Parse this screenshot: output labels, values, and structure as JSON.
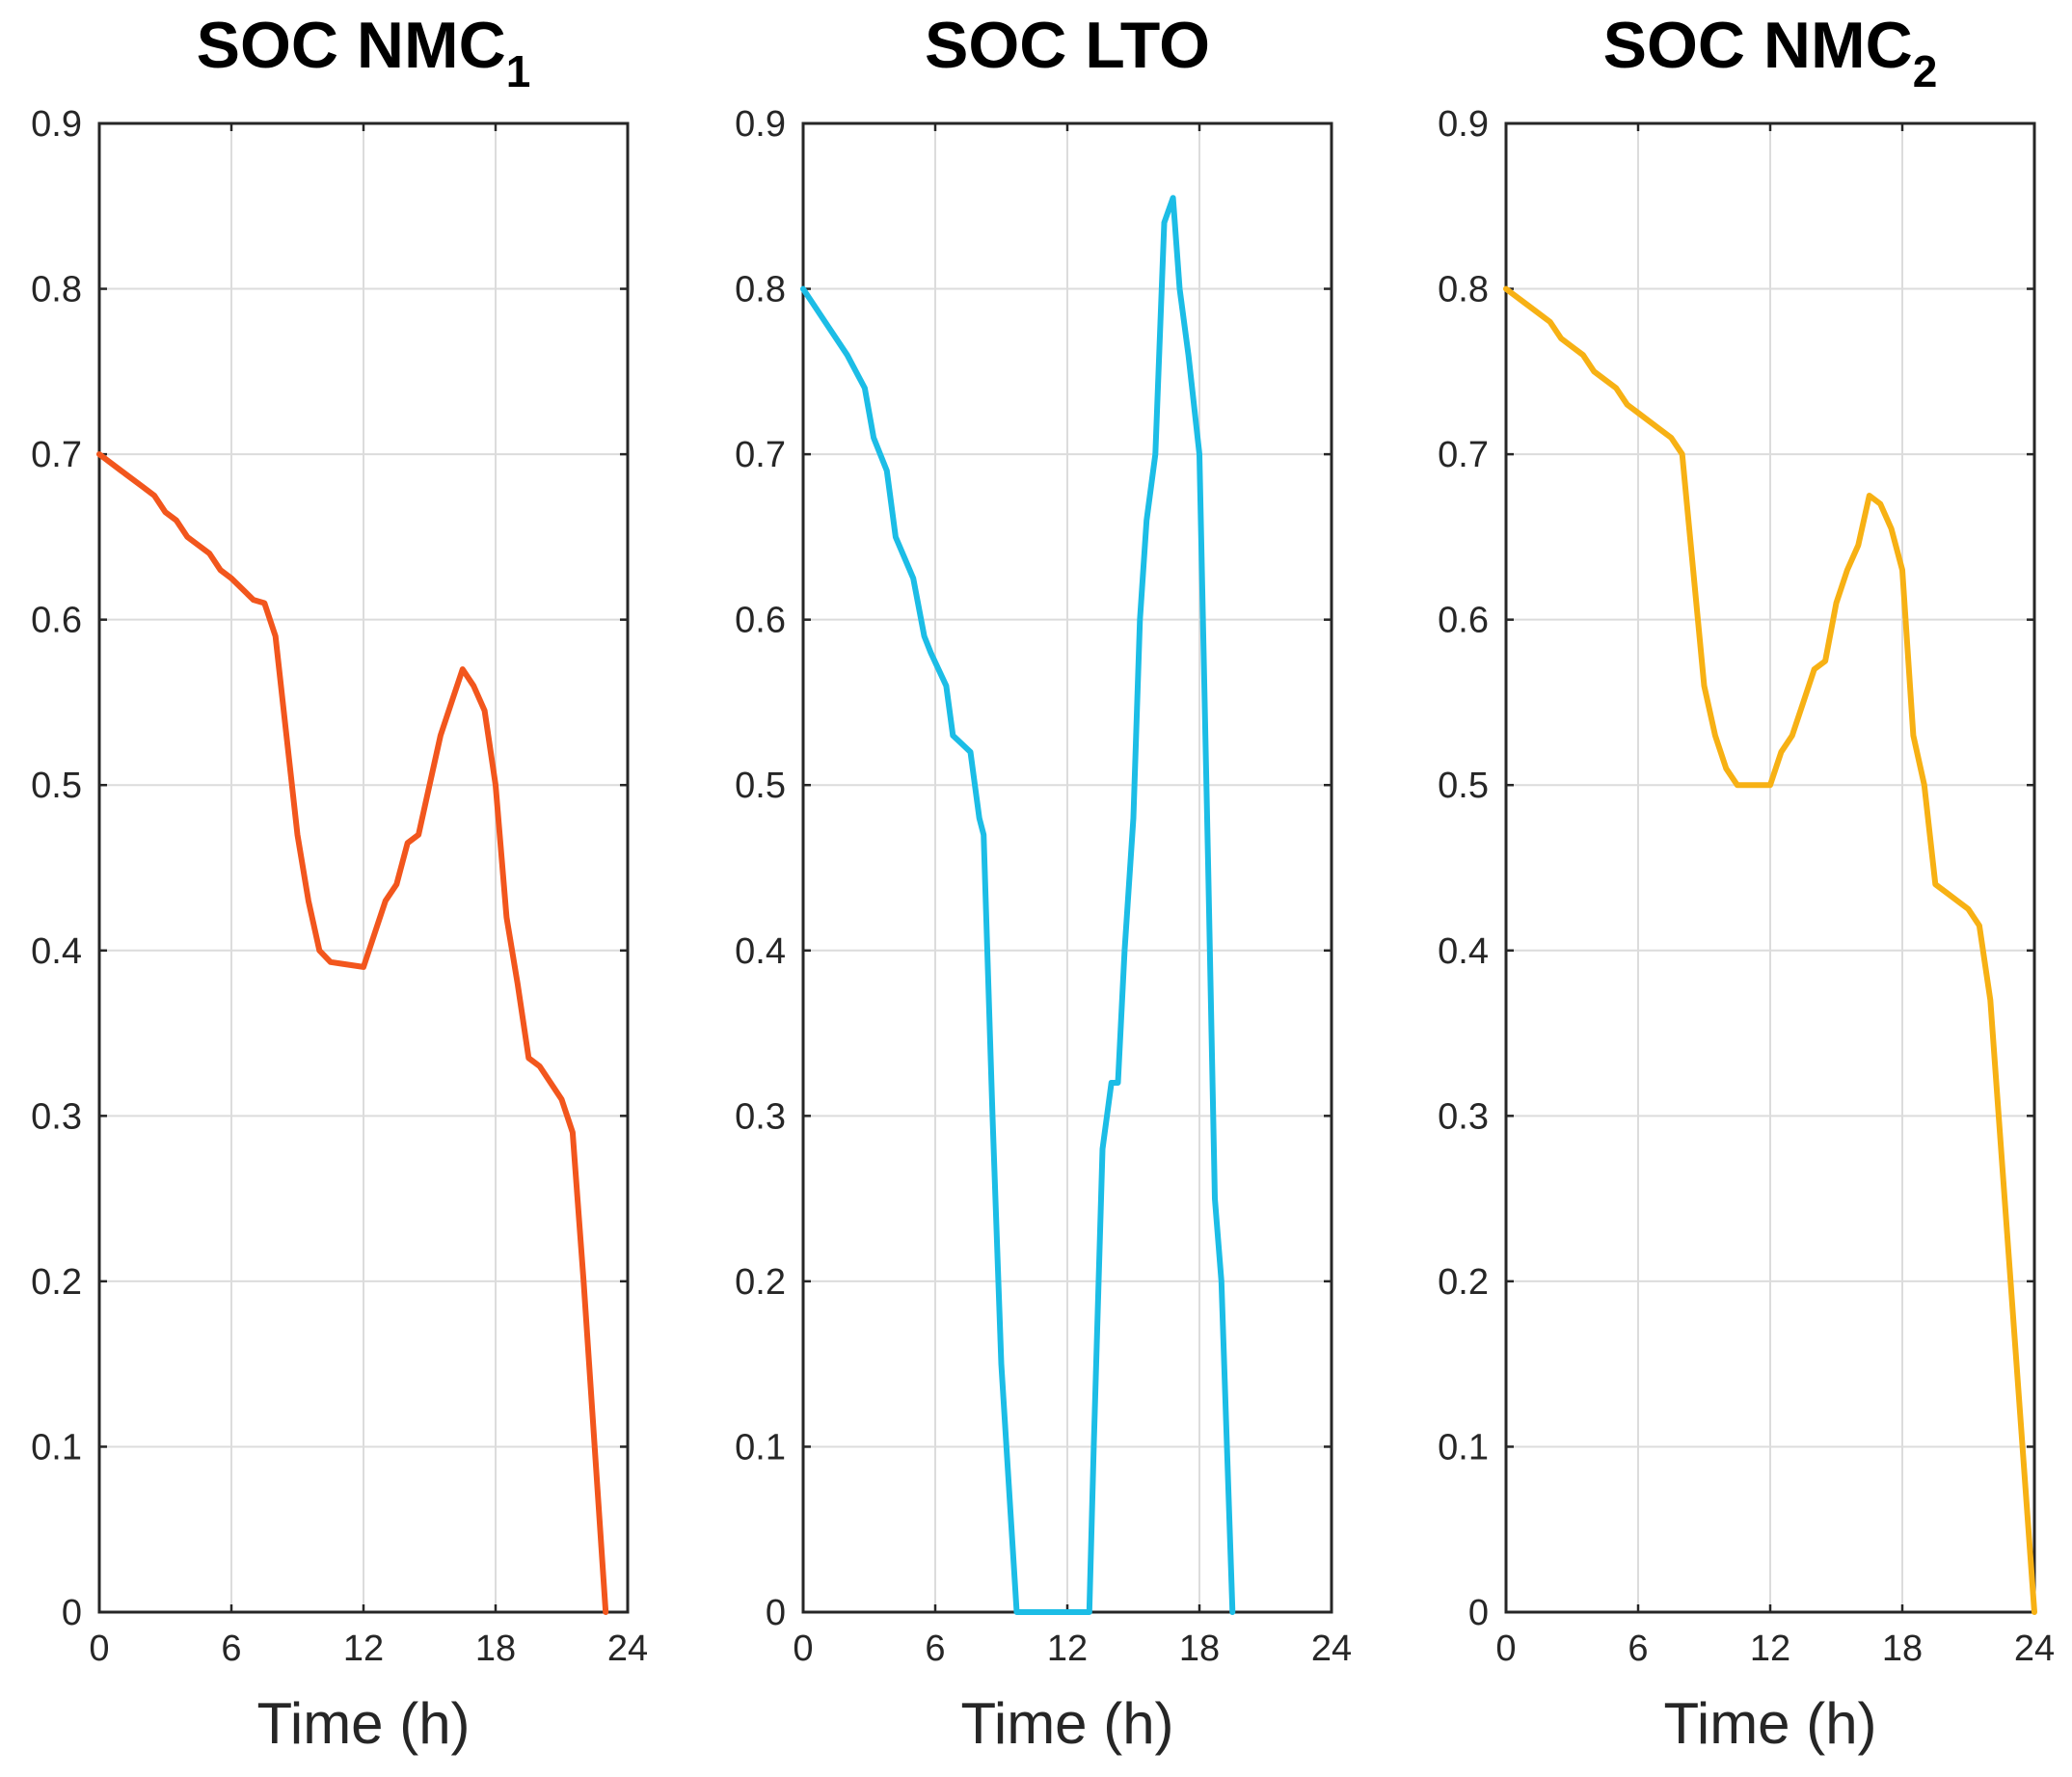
{
  "chart_data": [
    {
      "type": "line",
      "title": "SOC NMC",
      "title_subscript": "1",
      "xlabel": "Time (h)",
      "ylabel": "",
      "xlim": [
        0,
        24
      ],
      "ylim": [
        0,
        0.9
      ],
      "xticks": [
        0,
        6,
        12,
        18,
        24
      ],
      "yticks": [
        0,
        0.1,
        0.2,
        0.3,
        0.4,
        0.5,
        0.6,
        0.7,
        0.8,
        0.9
      ],
      "xtick_labels": [
        "0",
        "6",
        "12",
        "18",
        "24"
      ],
      "ytick_labels": [
        "0",
        "0.1",
        "0.2",
        "0.3",
        "0.4",
        "0.5",
        "0.6",
        "0.7",
        "0.8",
        "0.9"
      ],
      "grid": true,
      "color": "#f2561d",
      "series": [
        {
          "name": "SOC NMC1",
          "x": [
            0,
            1,
            2,
            2.5,
            3,
            3.5,
            4,
            5,
            5.5,
            6,
            7,
            7.5,
            8,
            8.5,
            9,
            9.5,
            10,
            10.5,
            11,
            12,
            12.5,
            13,
            13.5,
            14,
            14.5,
            15,
            15.5,
            16,
            16.5,
            17,
            17.5,
            18,
            18.5,
            19,
            19.5,
            20,
            21,
            21.5,
            22,
            23
          ],
          "y": [
            0.7,
            0.69,
            0.68,
            0.675,
            0.665,
            0.66,
            0.65,
            0.64,
            0.63,
            0.625,
            0.612,
            0.61,
            0.59,
            0.53,
            0.47,
            0.43,
            0.4,
            0.393,
            0.392,
            0.39,
            0.41,
            0.43,
            0.44,
            0.465,
            0.47,
            0.5,
            0.53,
            0.55,
            0.57,
            0.56,
            0.545,
            0.5,
            0.42,
            0.38,
            0.335,
            0.33,
            0.31,
            0.29,
            0.2,
            0.0
          ]
        }
      ]
    },
    {
      "type": "line",
      "title": "SOC LTO",
      "title_subscript": "",
      "xlabel": "Time (h)",
      "ylabel": "",
      "xlim": [
        0,
        24
      ],
      "ylim": [
        0,
        0.9
      ],
      "xticks": [
        0,
        6,
        12,
        18,
        24
      ],
      "yticks": [
        0,
        0.1,
        0.2,
        0.3,
        0.4,
        0.5,
        0.6,
        0.7,
        0.8,
        0.9
      ],
      "xtick_labels": [
        "0",
        "6",
        "12",
        "18",
        "24"
      ],
      "ytick_labels": [
        "0",
        "0.1",
        "0.2",
        "0.3",
        "0.4",
        "0.5",
        "0.6",
        "0.7",
        "0.8",
        "0.9"
      ],
      "grid": true,
      "color": "#1cbde6",
      "series": [
        {
          "name": "SOC LTO",
          "x": [
            0,
            1,
            2,
            2.8,
            3.2,
            3.8,
            4.2,
            5,
            5.5,
            5.8,
            6.5,
            6.8,
            7.2,
            7.6,
            8,
            8.2,
            8.6,
            9,
            9.7,
            13,
            13.2,
            13.6,
            14,
            14.3,
            14.6,
            15,
            15.3,
            15.6,
            16,
            16.4,
            16.8,
            17.1,
            17.5,
            18,
            18.4,
            18.7,
            19,
            19.5
          ],
          "y": [
            0.8,
            0.78,
            0.76,
            0.74,
            0.71,
            0.69,
            0.65,
            0.625,
            0.59,
            0.58,
            0.56,
            0.53,
            0.525,
            0.52,
            0.48,
            0.47,
            0.3,
            0.15,
            0.0,
            0.0,
            0.1,
            0.28,
            0.32,
            0.32,
            0.4,
            0.48,
            0.6,
            0.66,
            0.7,
            0.84,
            0.855,
            0.8,
            0.76,
            0.7,
            0.45,
            0.25,
            0.2,
            0.0
          ]
        }
      ]
    },
    {
      "type": "line",
      "title": "SOC NMC",
      "title_subscript": "2",
      "xlabel": "Time (h)",
      "ylabel": "",
      "xlim": [
        0,
        24
      ],
      "ylim": [
        0,
        0.9
      ],
      "xticks": [
        0,
        6,
        12,
        18,
        24
      ],
      "yticks": [
        0,
        0.1,
        0.2,
        0.3,
        0.4,
        0.5,
        0.6,
        0.7,
        0.8,
        0.9
      ],
      "xtick_labels": [
        "0",
        "6",
        "12",
        "18",
        "24"
      ],
      "ytick_labels": [
        "0",
        "0.1",
        "0.2",
        "0.3",
        "0.4",
        "0.5",
        "0.6",
        "0.7",
        "0.8",
        "0.9"
      ],
      "grid": true,
      "color": "#f7b114",
      "series": [
        {
          "name": "SOC NMC2",
          "x": [
            0,
            1,
            2,
            2.5,
            3,
            3.5,
            4,
            5,
            5.5,
            6,
            7,
            7.5,
            8,
            8.5,
            9,
            9.5,
            10,
            10.5,
            11,
            12,
            12.5,
            13,
            13.5,
            14,
            14.5,
            15,
            15.5,
            16,
            16.5,
            17,
            17.5,
            18,
            18.5,
            19,
            19.5,
            20,
            21,
            21.5,
            22,
            24
          ],
          "y": [
            0.8,
            0.79,
            0.78,
            0.77,
            0.765,
            0.76,
            0.75,
            0.74,
            0.73,
            0.725,
            0.715,
            0.71,
            0.7,
            0.63,
            0.56,
            0.53,
            0.51,
            0.5,
            0.5,
            0.5,
            0.52,
            0.53,
            0.55,
            0.57,
            0.575,
            0.61,
            0.63,
            0.645,
            0.675,
            0.67,
            0.655,
            0.63,
            0.53,
            0.5,
            0.44,
            0.435,
            0.425,
            0.415,
            0.37,
            0.0
          ]
        }
      ]
    }
  ]
}
